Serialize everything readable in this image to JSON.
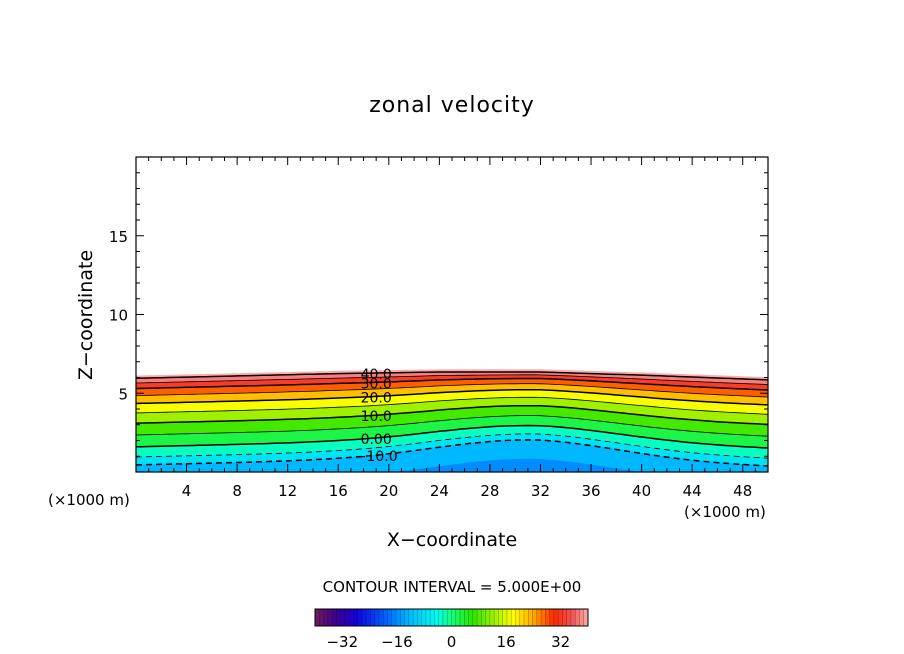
{
  "chart_data": {
    "type": "contour",
    "title": "zonal velocity",
    "xlabel": "X−coordinate",
    "ylabel": "Z−coordinate",
    "x_unit_left": "(×1000 m)",
    "x_unit_right": "(×1000 m)",
    "xlim": [
      0,
      50
    ],
    "ylim": [
      0,
      20
    ],
    "x_ticks": [
      4,
      8,
      12,
      16,
      20,
      24,
      28,
      32,
      36,
      40,
      44,
      48
    ],
    "y_ticks": [
      5,
      10,
      15
    ],
    "contour_levels": [
      -10,
      -5,
      0,
      5,
      10,
      15,
      20,
      25,
      30,
      35,
      40
    ],
    "contour_labels": [
      {
        "text": "40.0",
        "value": 40
      },
      {
        "text": "30.0",
        "value": 30
      },
      {
        "text": "20.0",
        "value": 20
      },
      {
        "text": "10.0",
        "value": 10
      },
      {
        "text": "0.00",
        "value": 0
      },
      {
        "text": "−10.0",
        "value": -10
      }
    ],
    "field_top_height": {
      "x": [
        0,
        16,
        24,
        32,
        40,
        50
      ],
      "z": [
        6.1,
        6.4,
        6.5,
        6.5,
        6.3,
        6.0
      ]
    },
    "note": "CONTOUR INTERVAL = 5.000E+00",
    "colorbar": {
      "min": -40,
      "max": 40,
      "ticks": [
        "−32",
        "−16",
        "0",
        "16",
        "32"
      ],
      "tick_values": [
        -32,
        -16,
        0,
        16,
        32
      ]
    }
  }
}
